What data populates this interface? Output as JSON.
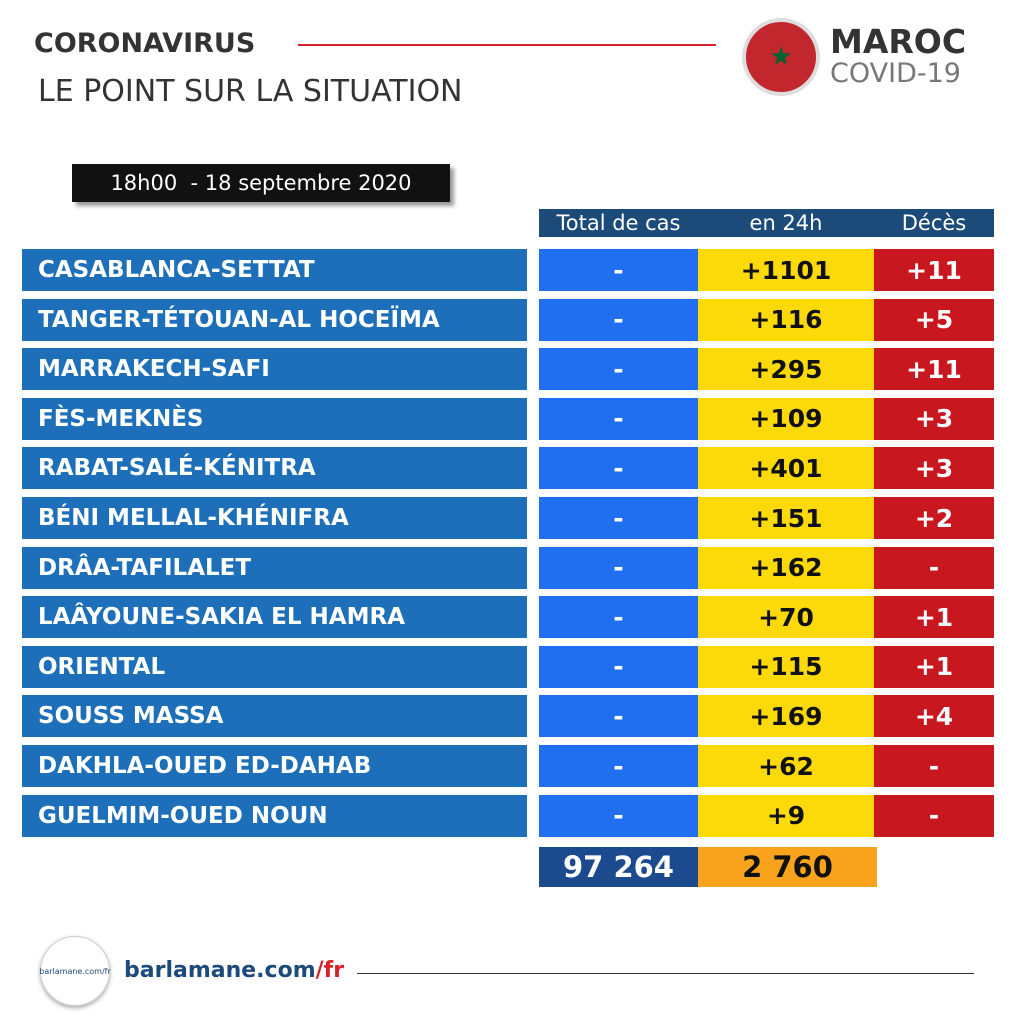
{
  "header": {
    "title": "CORONAVIRUS",
    "subtitle": "LE POINT SUR LA SITUATION",
    "badge_title": "MAROC",
    "badge_subtitle": "COVID-19",
    "date": "18h00  - 18 septembre 2020"
  },
  "table": {
    "columns": [
      "Total de cas",
      "en 24h",
      "Décès"
    ],
    "rows": [
      [
        "CASABLANCA-SETTAT",
        "-",
        "+1101",
        "+11"
      ],
      [
        "TANGER-TÉTOUAN-AL HOCEÏMA",
        "-",
        "+116",
        "+5"
      ],
      [
        "MARRAKECH-SAFI",
        "-",
        "+295",
        "+11"
      ],
      [
        "FÈS-MEKNÈS",
        "-",
        "+109",
        "+3"
      ],
      [
        "RABAT-SALÉ-KÉNITRA",
        "-",
        "+401",
        "+3"
      ],
      [
        "BÉNI MELLAL-KHÉNIFRA",
        "-",
        "+151",
        "+2"
      ],
      [
        "DRÂA-TAFILALET",
        "-",
        "+162",
        "-"
      ],
      [
        "LAÂYOUNE-SAKIA EL HAMRA",
        "-",
        "+70",
        "+1"
      ],
      [
        "ORIENTAL",
        "-",
        "+115",
        "+1"
      ],
      [
        "SOUSS MASSA",
        "-",
        "+169",
        "+4"
      ],
      [
        "DAKHLA-OUED ED-DAHAB",
        "-",
        "+62",
        "-"
      ],
      [
        "GUELMIM-OUED NOUN",
        "-",
        "+9",
        "-"
      ]
    ],
    "totals": [
      "97 264",
      "2 760"
    ]
  },
  "footer": {
    "logo": "barlamane.com/fr",
    "site": "barlamane.com",
    "site_suffix": "/fr"
  }
}
